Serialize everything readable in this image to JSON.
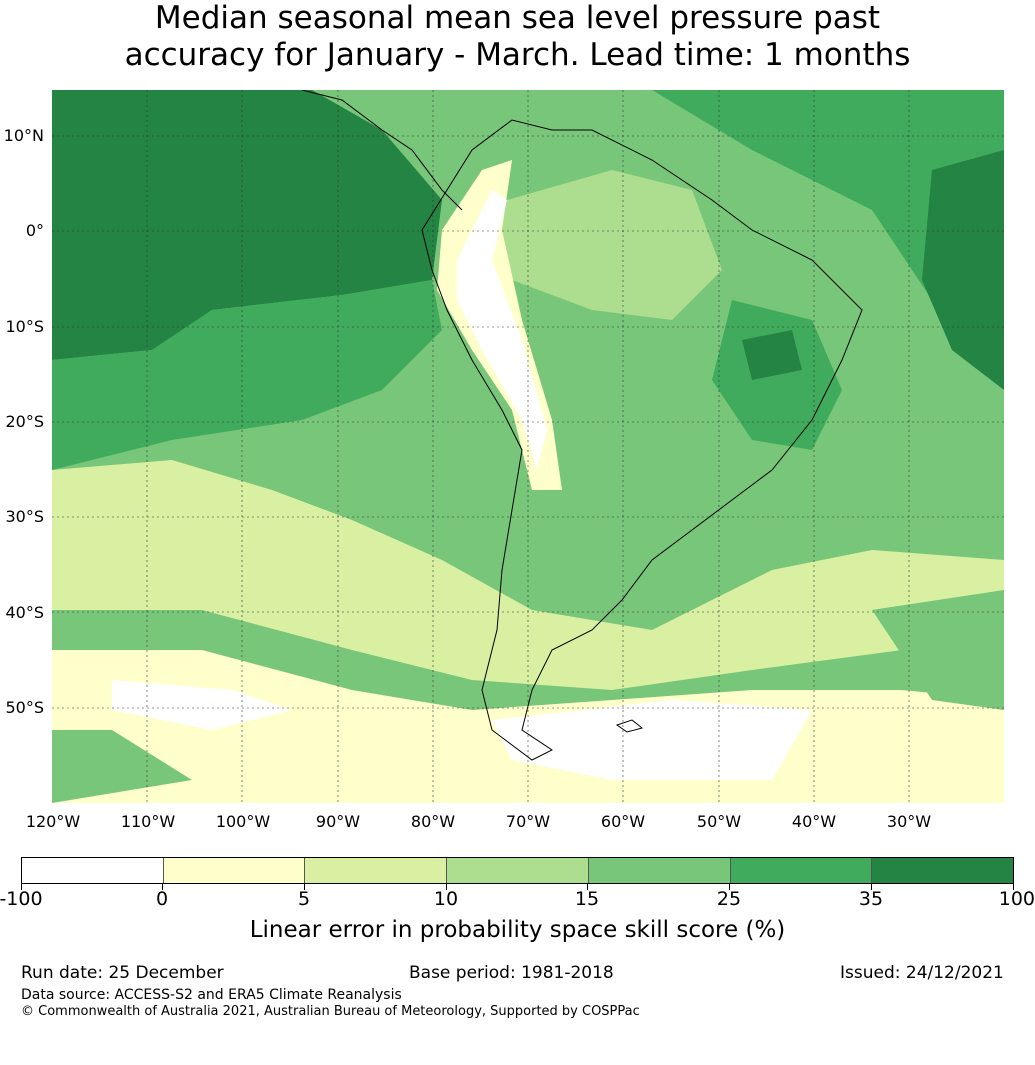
{
  "title": {
    "line1": "Median seasonal mean sea level pressure past",
    "line2": "accuracy for January - March. Lead time: 1 months"
  },
  "map": {
    "region": "South America and surrounding oceans",
    "lat_labels": [
      "10°N",
      "0°",
      "10°S",
      "20°S",
      "30°S",
      "40°S",
      "50°S"
    ],
    "lon_labels": [
      "120°W",
      "110°W",
      "100°W",
      "90°W",
      "80°W",
      "70°W",
      "60°W",
      "50°W",
      "40°W",
      "30°W"
    ]
  },
  "colorbar": {
    "title": "Linear error in probability space skill score (%)",
    "ticks": [
      "-100",
      "0",
      "5",
      "10",
      "15",
      "25",
      "35",
      "100"
    ],
    "colors": [
      "#ffffff",
      "#ffffcc",
      "#d9f0a3",
      "#addd8e",
      "#78c679",
      "#41ab5d",
      "#238443"
    ]
  },
  "footer": {
    "run_date": "Run date: 25 December",
    "base_period": "Base period: 1981-2018",
    "issued": "Issued: 24/12/2021",
    "data_source": "Data source: ACCESS-S2 and ERA5 Climate Reanalysis",
    "copyright": "© Commonwealth of Australia 2021, Australian Bureau of Meteorology, Supported by COSPPac"
  }
}
